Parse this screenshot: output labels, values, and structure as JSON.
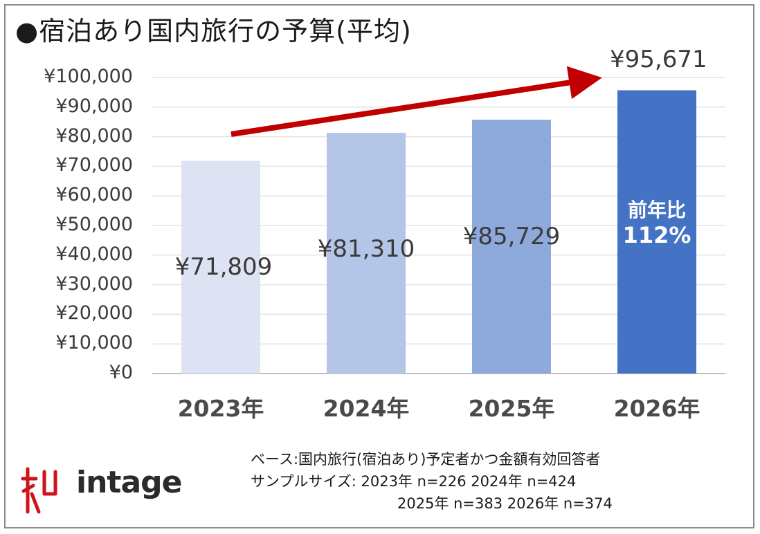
{
  "title": "●宿泊あり国内旅行の予算(平均)",
  "chart_data": {
    "type": "bar",
    "categories": [
      "2023年",
      "2024年",
      "2025年",
      "2026年"
    ],
    "values": [
      71809,
      81310,
      85729,
      95671
    ],
    "value_labels": [
      "¥71,809",
      "¥81,310",
      "¥85,729",
      "¥95,671"
    ],
    "ylim": [
      0,
      100000
    ],
    "yticks": [
      "¥0",
      "¥10,000",
      "¥20,000",
      "¥30,000",
      "¥40,000",
      "¥50,000",
      "¥60,000",
      "¥70,000",
      "¥80,000",
      "¥90,000",
      "¥100,000"
    ],
    "bar_colors": [
      "#dde3f3",
      "#b4c6e8",
      "#8eaadc",
      "#4472c4"
    ],
    "trend_arrow_color": "#c00000",
    "grid": true,
    "annotation": {
      "line1": "前年比",
      "line2": "112%"
    }
  },
  "notes": {
    "base": "ベース:国内旅行(宿泊あり)予定者かつ金額有効回答者",
    "sample_line1": "サンプルサイズ: 2023年 n=226  2024年 n=424",
    "sample_line2": "2025年 n=383  2026年 n=374"
  },
  "logo": {
    "text": "intage",
    "color": "#d0121b"
  }
}
